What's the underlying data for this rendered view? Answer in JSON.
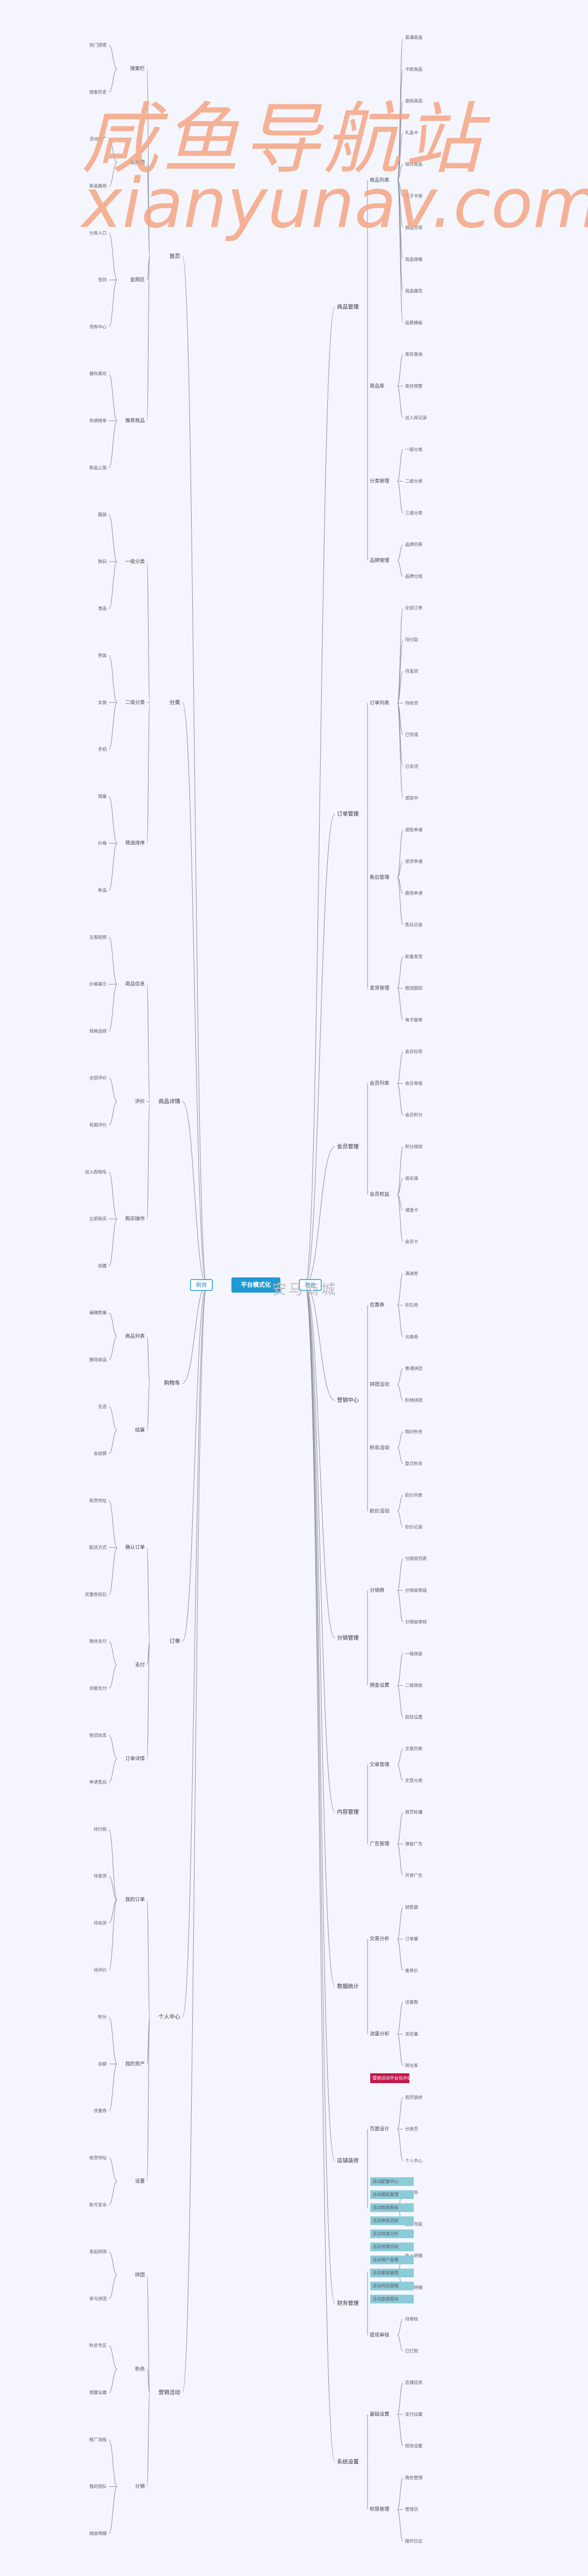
{
  "watermark": {
    "line1": "咸鱼导航站",
    "line2": "xianyunav.com"
  },
  "center_watermark": "安马商城",
  "root": {
    "label": "平台模式化"
  },
  "left_tag": "前台",
  "right_tag": "后台",
  "right_branches": [
    {
      "label": "商品管理",
      "children": [
        {
          "label": "商品列表",
          "children": [
            "普通商品",
            "卡密商品",
            "虚拟商品",
            "礼品卡",
            "组合商品",
            "电子卡券",
            "商品分组",
            "商品规格",
            "商品属性",
            "运费模板"
          ]
        },
        {
          "label": "商品库",
          "children": [
            "库存查询",
            "库存预警",
            "出入库记录"
          ]
        },
        {
          "label": "分类管理",
          "children": [
            "一级分类",
            "二级分类",
            "三级分类"
          ]
        },
        {
          "label": "品牌管理",
          "children": [
            "品牌列表",
            "品牌分组"
          ]
        }
      ]
    },
    {
      "label": "订单管理",
      "children": [
        {
          "label": "订单列表",
          "children": [
            "全部订单",
            "待付款",
            "待发货",
            "待收货",
            "已完成",
            "已关闭",
            "退款中"
          ]
        },
        {
          "label": "售后管理",
          "children": [
            "退款申请",
            "退货申请",
            "换货申请",
            "售后记录"
          ]
        },
        {
          "label": "发货管理",
          "children": [
            "批量发货",
            "物流跟踪",
            "电子面单"
          ]
        }
      ]
    },
    {
      "label": "会员管理",
      "children": [
        {
          "label": "会员列表",
          "children": [
            "会员标签",
            "会员等级",
            "会员积分"
          ]
        },
        {
          "label": "会员权益",
          "children": [
            "积分规则",
            "成长值",
            "储值卡",
            "会员卡"
          ]
        }
      ]
    },
    {
      "label": "营销中心",
      "children": [
        {
          "label": "优惠券",
          "children": [
            "满减券",
            "折扣券",
            "兑换券"
          ]
        },
        {
          "label": "拼团活动",
          "children": [
            "普通拼团",
            "阶梯拼团"
          ]
        },
        {
          "label": "秒杀活动",
          "children": [
            "限时秒杀",
            "整点秒杀"
          ]
        },
        {
          "label": "砍价活动",
          "children": [
            "砍价列表",
            "砍价记录"
          ]
        }
      ]
    },
    {
      "label": "分销管理",
      "children": [
        {
          "label": "分销商",
          "children": [
            "分销商列表",
            "分销商等级",
            "分销商审核"
          ]
        },
        {
          "label": "佣金设置",
          "children": [
            "一级佣金",
            "二级佣金",
            "提现设置"
          ]
        }
      ]
    },
    {
      "label": "内容管理",
      "children": [
        {
          "label": "文章管理",
          "children": [
            "文章列表",
            "文章分类"
          ]
        },
        {
          "label": "广告管理",
          "children": [
            "首页轮播",
            "弹窗广告",
            "开屏广告"
          ]
        }
      ]
    },
    {
      "label": "数据统计",
      "children": [
        {
          "label": "交易分析",
          "children": [
            "销售额",
            "订单量",
            "客单价"
          ]
        },
        {
          "label": "流量分析",
          "children": [
            "访客数",
            "浏览量",
            "转化率"
          ]
        }
      ]
    },
    {
      "label": "店铺装修",
      "children": [
        {
          "label": "页面设计",
          "children": [
            "首页装修",
            "分类页",
            "个人中心"
          ]
        },
        {
          "label": "主题设置",
          "children": [
            "主题色",
            "底部导航"
          ]
        }
      ]
    },
    {
      "label": "财务管理",
      "children": [
        {
          "label": "对账管理",
          "children": [
            "收入明细",
            "支出明细"
          ]
        },
        {
          "label": "提现审核",
          "children": [
            "待审核",
            "已打款"
          ]
        }
      ]
    },
    {
      "label": "系统设置",
      "children": [
        {
          "label": "基础设置",
          "children": [
            "店铺信息",
            "支付设置",
            "短信设置"
          ]
        },
        {
          "label": "权限管理",
          "children": [
            "角色管理",
            "管理员",
            "操作日志"
          ]
        }
      ]
    }
  ],
  "left_branches": [
    {
      "label": "首页",
      "children": [
        {
          "label": "搜索栏",
          "children": [
            "热门搜索",
            "搜索历史"
          ]
        },
        {
          "label": "轮播图",
          "children": [
            "活动推广",
            "新品推荐"
          ]
        },
        {
          "label": "金刚区",
          "children": [
            "分类入口",
            "签到",
            "领券中心"
          ]
        },
        {
          "label": "推荐商品",
          "children": [
            "猜你喜欢",
            "热销榜单",
            "新品上架"
          ]
        }
      ]
    },
    {
      "label": "分类",
      "children": [
        {
          "label": "一级分类",
          "children": [
            "服装",
            "数码",
            "食品"
          ]
        },
        {
          "label": "二级分类",
          "children": [
            "男装",
            "女装",
            "手机"
          ]
        },
        {
          "label": "筛选排序",
          "children": [
            "销量",
            "价格",
            "新品"
          ]
        }
      ]
    },
    {
      "label": "商品详情",
      "children": [
        {
          "label": "商品信息",
          "children": [
            "主图视频",
            "价格展示",
            "规格选择"
          ]
        },
        {
          "label": "评价",
          "children": [
            "全部评价",
            "有图评价"
          ]
        },
        {
          "label": "购买操作",
          "children": [
            "加入购物车",
            "立即购买",
            "收藏"
          ]
        }
      ]
    },
    {
      "label": "购物车",
      "children": [
        {
          "label": "商品列表",
          "children": [
            "编辑数量",
            "删除商品"
          ]
        },
        {
          "label": "结算",
          "children": [
            "全选",
            "去结算"
          ]
        }
      ]
    },
    {
      "label": "订单",
      "children": [
        {
          "label": "确认订单",
          "children": [
            "收货地址",
            "配送方式",
            "优惠券抵扣"
          ]
        },
        {
          "label": "支付",
          "children": [
            "微信支付",
            "余额支付"
          ]
        },
        {
          "label": "订单详情",
          "children": [
            "物流信息",
            "申请售后"
          ]
        }
      ]
    },
    {
      "label": "个人中心",
      "children": [
        {
          "label": "我的订单",
          "children": [
            "待付款",
            "待发货",
            "待收货",
            "待评价"
          ]
        },
        {
          "label": "我的资产",
          "children": [
            "积分",
            "余额",
            "优惠券"
          ]
        },
        {
          "label": "设置",
          "children": [
            "收货地址",
            "账号安全"
          ]
        }
      ]
    },
    {
      "label": "营销活动",
      "children": [
        {
          "label": "拼团",
          "children": [
            "发起拼团",
            "参与拼团"
          ]
        },
        {
          "label": "秒杀",
          "children": [
            "秒杀专区",
            "提醒设置"
          ]
        },
        {
          "label": "分销",
          "children": [
            "推广海报",
            "我的团队",
            "佣金明细"
          ]
        }
      ]
    }
  ],
  "highlights": {
    "red": "营销活动平台化升级",
    "blue": [
      "活动配置中心",
      "活动模板管理",
      "活动数据看板",
      "活动审核流程",
      "活动效果分析",
      "活动预算控制",
      "活动用户画像",
      "活动渠道管理",
      "活动风控策略",
      "活动复盘报告"
    ]
  }
}
